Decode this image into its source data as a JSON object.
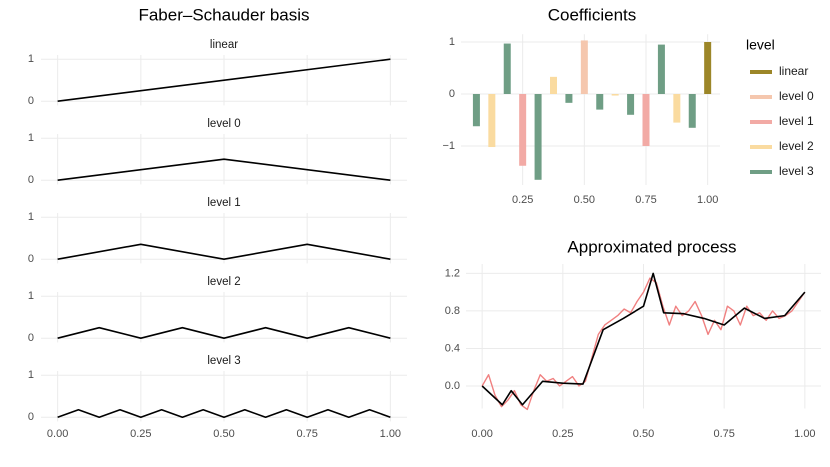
{
  "chart_data": [
    {
      "type": "facet-line",
      "title": "Faber–Schauder basis",
      "color": "#000000",
      "grid": true,
      "xlim": [
        -0.05,
        1.05
      ],
      "xticks": [
        {
          "value": 0,
          "label": "0.00"
        },
        {
          "value": 0.25,
          "label": "0.25"
        },
        {
          "value": 0.5,
          "label": "0.50"
        },
        {
          "value": 0.75,
          "label": "0.75"
        },
        {
          "value": 1,
          "label": "1.00"
        }
      ],
      "ylim": [
        -0.1,
        1.1
      ],
      "yticks": [
        0,
        1
      ],
      "facets": [
        {
          "label": "linear",
          "x": [
            0,
            1
          ],
          "values": [
            0,
            1
          ]
        },
        {
          "label": "level 0",
          "x": [
            0,
            0.5,
            1
          ],
          "values": [
            0,
            0.5,
            0
          ]
        },
        {
          "label": "level 1",
          "x": [
            0,
            0.25,
            0.5,
            0.75,
            1
          ],
          "values": [
            0,
            0.354,
            0,
            0.354,
            0
          ]
        },
        {
          "label": "level 2",
          "x": [
            0,
            0.125,
            0.25,
            0.375,
            0.5,
            0.625,
            0.75,
            0.875,
            1
          ],
          "values": [
            0,
            0.25,
            0,
            0.25,
            0,
            0.25,
            0,
            0.25,
            0
          ]
        },
        {
          "label": "level 3",
          "x": [
            0,
            0.0625,
            0.125,
            0.1875,
            0.25,
            0.3125,
            0.375,
            0.4375,
            0.5,
            0.5625,
            0.625,
            0.6875,
            0.75,
            0.8125,
            0.875,
            0.9375,
            1
          ],
          "values": [
            0,
            0.177,
            0,
            0.177,
            0,
            0.177,
            0,
            0.177,
            0,
            0.177,
            0,
            0.177,
            0,
            0.177,
            0,
            0.177,
            0
          ]
        }
      ]
    },
    {
      "type": "bar",
      "title": "Coefficients",
      "legend_title": "level",
      "legend": "right",
      "grid": true,
      "xlim": [
        0,
        1.05
      ],
      "xticks": [
        {
          "value": 0.25,
          "label": "0.25"
        },
        {
          "value": 0.5,
          "label": "0.50"
        },
        {
          "value": 0.75,
          "label": "0.75"
        },
        {
          "value": 1,
          "label": "1.00"
        }
      ],
      "ylim": [
        -1.75,
        1.15
      ],
      "yticks": [
        {
          "value": -1,
          "label": "−1"
        },
        0,
        1
      ],
      "series": [
        {
          "name": "linear",
          "color": "#9c8628",
          "x": [
            1
          ],
          "values": [
            1
          ]
        },
        {
          "name": "level 0",
          "color": "#f5c7ae",
          "x": [
            0.5
          ],
          "values": [
            1.03
          ]
        },
        {
          "name": "level 1",
          "color": "#f2aaa5",
          "x": [
            0.25,
            0.75
          ],
          "values": [
            -1.38,
            -1.0
          ]
        },
        {
          "name": "level 2",
          "color": "#fadba0",
          "x": [
            0.125,
            0.375,
            0.625,
            0.875
          ],
          "values": [
            -1.02,
            0.33,
            -0.03,
            -0.55
          ]
        },
        {
          "name": "level 3",
          "color": "#6f9e85",
          "x": [
            0.0625,
            0.1875,
            0.3125,
            0.4375,
            0.5625,
            0.6875,
            0.8125,
            0.9375
          ],
          "values": [
            -0.62,
            0.97,
            -1.65,
            -0.17,
            -0.3,
            -0.4,
            0.95,
            -0.65
          ]
        }
      ]
    },
    {
      "type": "line",
      "title": "Approximated process",
      "grid": true,
      "xlim": [
        -0.05,
        1.05
      ],
      "xticks": [
        {
          "value": 0,
          "label": "0.00"
        },
        {
          "value": 0.25,
          "label": "0.25"
        },
        {
          "value": 0.5,
          "label": "0.50"
        },
        {
          "value": 0.75,
          "label": "0.75"
        },
        {
          "value": 1,
          "label": "1.00"
        }
      ],
      "ylim": [
        -0.24,
        1.3
      ],
      "yticks": [
        {
          "value": 0,
          "label": "0.0"
        },
        0.4,
        0.8,
        1.2
      ],
      "series": [
        {
          "color": "#f08080",
          "x": [
            0,
            0.02,
            0.04,
            0.06,
            0.08,
            0.1,
            0.12,
            0.14,
            0.16,
            0.18,
            0.2,
            0.22,
            0.24,
            0.26,
            0.28,
            0.3,
            0.32,
            0.34,
            0.36,
            0.38,
            0.4,
            0.42,
            0.44,
            0.46,
            0.48,
            0.5,
            0.52,
            0.54,
            0.56,
            0.58,
            0.6,
            0.62,
            0.64,
            0.66,
            0.68,
            0.7,
            0.72,
            0.74,
            0.76,
            0.78,
            0.8,
            0.82,
            0.84,
            0.86,
            0.88,
            0.9,
            0.92,
            0.94,
            0.96,
            0.98,
            1
          ],
          "values": [
            0,
            0.12,
            -0.1,
            -0.22,
            -0.15,
            -0.05,
            -0.2,
            -0.25,
            -0.05,
            0.12,
            0.05,
            0.08,
            0,
            0.05,
            0.1,
            0,
            0.05,
            0.3,
            0.55,
            0.65,
            0.7,
            0.75,
            0.82,
            0.78,
            0.9,
            1,
            1.15,
            1.1,
            0.85,
            0.65,
            0.85,
            0.75,
            0.8,
            0.9,
            0.75,
            0.55,
            0.7,
            0.6,
            0.85,
            0.8,
            0.65,
            0.85,
            0.75,
            0.78,
            0.7,
            0.8,
            0.72,
            0.75,
            0.8,
            0.9,
            1
          ]
        },
        {
          "color": "#000000",
          "x": [
            0,
            0.0625,
            0.09,
            0.125,
            0.1875,
            0.25,
            0.3125,
            0.375,
            0.4375,
            0.5,
            0.53,
            0.5625,
            0.625,
            0.6875,
            0.75,
            0.8125,
            0.875,
            0.9375,
            1
          ],
          "values": [
            0,
            -0.2,
            -0.05,
            -0.2,
            0.05,
            0.03,
            0.02,
            0.6,
            0.72,
            0.85,
            1.2,
            0.78,
            0.77,
            0.72,
            0.65,
            0.83,
            0.72,
            0.75,
            1
          ]
        }
      ]
    }
  ]
}
